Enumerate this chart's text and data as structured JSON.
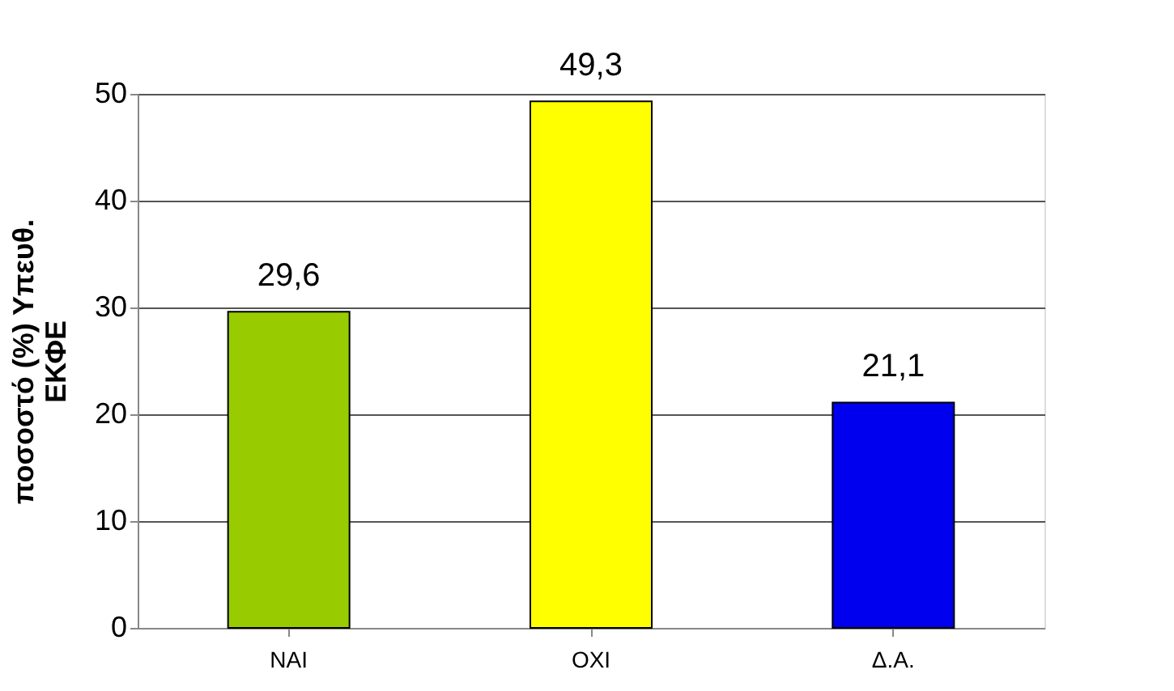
{
  "chart_data": {
    "type": "bar",
    "ylabel": "ποσοστό (%) Υπευθ. ΕΚΦΕ",
    "categories": [
      "ΝΑΙ",
      "ΟΧΙ",
      "Δ.Α."
    ],
    "values": [
      29.6,
      49.3,
      21.1
    ],
    "colors": [
      "#99cc00",
      "#ffff00",
      "#0000ee"
    ],
    "value_labels": [
      "29,6",
      "49,3",
      "21,1"
    ],
    "ylim": [
      0,
      50
    ],
    "yticks": [
      0,
      10,
      20,
      30,
      40,
      50
    ],
    "grid": "y",
    "legend": false
  }
}
